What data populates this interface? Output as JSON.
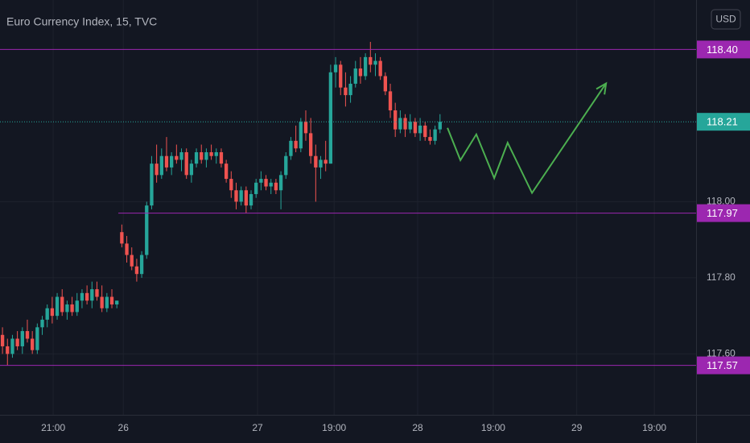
{
  "chart_data": {
    "type": "candlestick",
    "title": "Euro Currency Index, 15, TVC",
    "currency": "USD",
    "background": "#131722",
    "up_color": "#26a69a",
    "down_color": "#ef5350",
    "grid": true,
    "series": [
      {
        "values": [
          [
            117.65,
            117.67,
            117.6,
            117.62
          ],
          [
            117.62,
            117.64,
            117.57,
            117.6
          ],
          [
            117.6,
            117.65,
            117.59,
            117.64
          ],
          [
            117.64,
            117.66,
            117.61,
            117.62
          ],
          [
            117.62,
            117.67,
            117.6,
            117.66
          ],
          [
            117.66,
            117.69,
            117.63,
            117.64
          ],
          [
            117.64,
            117.66,
            117.6,
            117.61
          ],
          [
            117.61,
            117.68,
            117.6,
            117.67
          ],
          [
            117.67,
            117.7,
            117.65,
            117.69
          ],
          [
            117.69,
            117.73,
            117.67,
            117.72
          ],
          [
            117.72,
            117.75,
            117.68,
            117.7
          ],
          [
            117.7,
            117.76,
            117.69,
            117.75
          ],
          [
            117.75,
            117.77,
            117.7,
            117.71
          ],
          [
            117.71,
            117.74,
            117.69,
            117.73
          ],
          [
            117.73,
            117.75,
            117.7,
            117.71
          ],
          [
            117.71,
            117.76,
            117.7,
            117.74
          ],
          [
            117.74,
            117.77,
            117.72,
            117.76
          ],
          [
            117.76,
            117.78,
            117.73,
            117.74
          ],
          [
            117.74,
            117.79,
            117.72,
            117.77
          ],
          [
            117.77,
            117.79,
            117.74,
            117.75
          ],
          [
            117.75,
            117.78,
            117.71,
            117.72
          ],
          [
            117.72,
            117.76,
            117.71,
            117.75
          ],
          [
            117.75,
            117.77,
            117.72,
            117.73
          ],
          [
            117.73,
            117.74,
            117.72,
            117.74
          ],
          [
            117.92,
            117.94,
            117.88,
            117.89
          ],
          [
            117.89,
            117.91,
            117.84,
            117.86
          ],
          [
            117.86,
            117.88,
            117.82,
            117.83
          ],
          [
            117.83,
            117.85,
            117.79,
            117.81
          ],
          [
            117.81,
            117.87,
            117.8,
            117.86
          ],
          [
            117.86,
            118.0,
            117.85,
            117.99
          ],
          [
            117.99,
            118.12,
            117.98,
            118.1
          ],
          [
            118.1,
            118.15,
            118.05,
            118.07
          ],
          [
            118.07,
            118.14,
            118.06,
            118.12
          ],
          [
            118.12,
            118.17,
            118.08,
            118.09
          ],
          [
            118.09,
            118.13,
            118.07,
            118.12
          ],
          [
            118.12,
            118.15,
            118.1,
            118.11
          ],
          [
            118.11,
            118.14,
            118.08,
            118.13
          ],
          [
            118.13,
            118.14,
            118.06,
            118.07
          ],
          [
            118.07,
            118.11,
            118.05,
            118.1
          ],
          [
            118.1,
            118.14,
            118.09,
            118.13
          ],
          [
            118.13,
            118.15,
            118.1,
            118.11
          ],
          [
            118.11,
            118.14,
            118.09,
            118.13
          ],
          [
            118.13,
            118.15,
            118.11,
            118.12
          ],
          [
            118.12,
            118.14,
            118.1,
            118.13
          ],
          [
            118.13,
            118.14,
            118.09,
            118.1
          ],
          [
            118.1,
            118.11,
            118.05,
            118.06
          ],
          [
            118.06,
            118.08,
            118.01,
            118.03
          ],
          [
            118.03,
            118.05,
            117.98,
            118.0
          ],
          [
            118.0,
            118.04,
            117.99,
            118.03
          ],
          [
            118.03,
            118.04,
            117.97,
            117.99
          ],
          [
            117.99,
            118.03,
            117.98,
            118.02
          ],
          [
            118.02,
            118.06,
            118.01,
            118.05
          ],
          [
            118.05,
            118.08,
            118.03,
            118.06
          ],
          [
            118.06,
            118.07,
            118.03,
            118.04
          ],
          [
            118.04,
            118.06,
            118.02,
            118.05
          ],
          [
            118.05,
            118.06,
            118.02,
            118.03
          ],
          [
            118.03,
            118.08,
            117.98,
            118.07
          ],
          [
            118.07,
            118.13,
            118.06,
            118.12
          ],
          [
            118.12,
            118.17,
            118.11,
            118.16
          ],
          [
            118.16,
            118.2,
            118.13,
            118.14
          ],
          [
            118.14,
            118.22,
            118.13,
            118.21
          ],
          [
            118.21,
            118.24,
            118.16,
            118.18
          ],
          [
            118.18,
            118.22,
            118.1,
            118.12
          ],
          [
            118.12,
            118.15,
            118.0,
            118.09
          ],
          [
            118.09,
            118.12,
            118.06,
            118.11
          ],
          [
            118.11,
            118.16,
            118.08,
            118.1
          ],
          [
            118.1,
            118.36,
            118.1,
            118.34
          ],
          [
            118.34,
            118.38,
            118.3,
            118.36
          ],
          [
            118.36,
            118.37,
            118.28,
            118.3
          ],
          [
            118.3,
            118.34,
            118.25,
            118.28
          ],
          [
            118.28,
            118.33,
            118.26,
            118.31
          ],
          [
            118.31,
            118.37,
            118.3,
            118.35
          ],
          [
            118.35,
            118.38,
            118.31,
            118.33
          ],
          [
            118.33,
            118.39,
            118.32,
            118.38
          ],
          [
            118.38,
            118.42,
            118.34,
            118.36
          ],
          [
            118.36,
            118.39,
            118.33,
            118.37
          ],
          [
            118.37,
            118.38,
            118.32,
            118.33
          ],
          [
            118.33,
            118.34,
            118.28,
            118.29
          ],
          [
            118.29,
            118.31,
            118.22,
            118.24
          ],
          [
            118.24,
            118.26,
            118.17,
            118.19
          ],
          [
            118.19,
            118.24,
            118.18,
            118.22
          ],
          [
            118.22,
            118.23,
            118.17,
            118.19
          ],
          [
            118.19,
            118.23,
            118.18,
            118.21
          ],
          [
            118.21,
            118.22,
            118.17,
            118.18
          ],
          [
            118.18,
            118.22,
            118.16,
            118.2
          ],
          [
            118.2,
            118.21,
            118.16,
            118.17
          ],
          [
            118.17,
            118.19,
            118.15,
            118.16
          ],
          [
            118.16,
            118.2,
            118.15,
            118.19
          ],
          [
            118.19,
            118.23,
            118.18,
            118.21
          ]
        ]
      }
    ],
    "xlim": [
      -0.5,
      139.5
    ],
    "xticks": [
      {
        "value": 10.2,
        "label": "21:00"
      },
      {
        "value": 24.3,
        "label": "26"
      },
      {
        "value": 51.3,
        "label": "27"
      },
      {
        "value": 66.7,
        "label": "19:00"
      },
      {
        "value": 83.5,
        "label": "28"
      },
      {
        "value": 98.7,
        "label": "19:00"
      },
      {
        "value": 115.5,
        "label": "29"
      },
      {
        "value": 131.1,
        "label": "19:00"
      }
    ],
    "ylim": [
      117.44,
      118.53
    ],
    "yticks": [
      {
        "value": 117.6,
        "label": "117.60"
      },
      {
        "value": 117.8,
        "label": "117.80"
      },
      {
        "value": 118.0,
        "label": "118.00"
      }
    ],
    "levels": [
      {
        "value": 118.4,
        "label": "118.40",
        "color": "#9c27b0",
        "x_start": -0.5
      },
      {
        "value": 117.97,
        "label": "117.97",
        "color": "#9c27b0",
        "x_start": 23.3
      },
      {
        "value": 117.57,
        "label": "117.57",
        "color": "#9c27b0",
        "x_start": -0.5
      }
    ],
    "last_price": {
      "value": 118.21,
      "label": "118.21",
      "color": "#26a69a"
    },
    "projection": {
      "color": "#4caf50",
      "x": [
        89.5,
        92.1,
        95.3,
        98.9,
        101.6,
        106.5,
        121.4
      ],
      "y": [
        118.194,
        118.109,
        118.177,
        118.062,
        118.155,
        118.023,
        118.311
      ]
    }
  }
}
